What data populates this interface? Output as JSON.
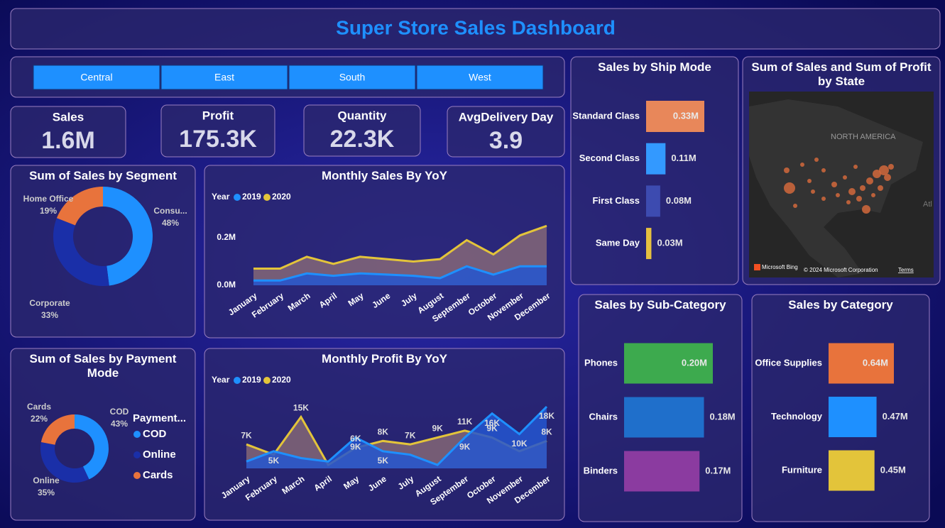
{
  "header": {
    "title": "Super Store Sales Dashboard"
  },
  "slicer": {
    "options": [
      "Central",
      "East",
      "South",
      "West"
    ]
  },
  "kpis": [
    {
      "label": "Sales",
      "value": "1.6M"
    },
    {
      "label": "Profit",
      "value": "175.3K"
    },
    {
      "label": "Quantity",
      "value": "22.3K"
    },
    {
      "label": "AvgDelivery Day",
      "value": "3.9"
    }
  ],
  "chart_data": [
    {
      "type": "donut",
      "title": "Sum of Sales by Segment",
      "categories": [
        "Consu...",
        "Corporate",
        "Home Office"
      ],
      "values": [
        48,
        33,
        19
      ],
      "value_labels": [
        "48%",
        "33%",
        "19%"
      ],
      "colors": [
        "#1E90FF",
        "#1A2FA8",
        "#E8733C"
      ]
    },
    {
      "type": "donut",
      "title": "Sum of Sales by Payment Mode",
      "legend_title": "Payment...",
      "legend": "right",
      "categories": [
        "COD",
        "Online",
        "Cards"
      ],
      "values": [
        43,
        35,
        22
      ],
      "value_labels": [
        "43%",
        "35%",
        "22%"
      ],
      "colors": [
        "#1E90FF",
        "#1A2FA8",
        "#E8733C"
      ]
    },
    {
      "type": "area",
      "title": "Monthly Sales By YoY",
      "legend_title": "Year",
      "categories": [
        "January",
        "February",
        "March",
        "April",
        "May",
        "June",
        "July",
        "August",
        "September",
        "October",
        "November",
        "December"
      ],
      "series": [
        {
          "name": "2019",
          "color": "#1E90FF",
          "values": [
            0.02,
            0.02,
            0.05,
            0.04,
            0.05,
            0.045,
            0.04,
            0.03,
            0.08,
            0.045,
            0.08,
            0.08
          ]
        },
        {
          "name": "2020",
          "color": "#E3C43A",
          "values": [
            0.07,
            0.07,
            0.12,
            0.09,
            0.12,
            0.11,
            0.1,
            0.11,
            0.19,
            0.13,
            0.21,
            0.25
          ]
        }
      ],
      "ylim": [
        0,
        0.3
      ],
      "yticks": [
        {
          "value": 0,
          "label": "0.0M"
        },
        {
          "value": 0.2,
          "label": "0.2M"
        }
      ]
    },
    {
      "type": "area",
      "title": "Monthly Profit By YoY",
      "legend_title": "Year",
      "categories": [
        "January",
        "February",
        "March",
        "April",
        "May",
        "June",
        "July",
        "August",
        "September",
        "October",
        "November",
        "December"
      ],
      "series": [
        {
          "name": "2019",
          "color": "#1E90FF",
          "values": [
            2,
            5,
            3,
            2,
            9,
            5,
            4,
            1,
            9,
            16,
            10,
            18
          ],
          "value_labels": [
            null,
            "5K",
            null,
            null,
            "9K",
            "5K",
            null,
            null,
            "9K",
            "16K",
            "10K",
            "18K"
          ]
        },
        {
          "name": "2020",
          "color": "#E3C43A",
          "values": [
            7,
            4,
            15,
            1,
            6,
            8,
            7,
            9,
            11,
            9,
            5,
            8
          ],
          "value_labels": [
            "7K",
            null,
            "15K",
            null,
            "6K",
            "8K",
            "7K",
            "9K",
            "11K",
            "9K",
            null,
            "8K"
          ]
        }
      ]
    },
    {
      "type": "hbar",
      "title": "Sales by Ship Mode",
      "categories": [
        "Standard Class",
        "Second Class",
        "First Class",
        "Same Day"
      ],
      "values": [
        0.33,
        0.11,
        0.08,
        0.03
      ],
      "value_labels": [
        "0.33M",
        "0.11M",
        "0.08M",
        "0.03M"
      ],
      "colors": [
        "#E8875A",
        "#3399FF",
        "#3D4BB0",
        "#E5C040"
      ]
    },
    {
      "type": "hbar",
      "title": "Sales by Sub-Category",
      "categories": [
        "Phones",
        "Chairs",
        "Binders"
      ],
      "values": [
        0.2,
        0.18,
        0.17
      ],
      "value_labels": [
        "0.20M",
        "0.18M",
        "0.17M"
      ],
      "colors": [
        "#3DAA4E",
        "#1F6FCB",
        "#8B3BA0"
      ]
    },
    {
      "type": "hbar",
      "title": "Sales by Category",
      "categories": [
        "Office Supplies",
        "Technology",
        "Furniture"
      ],
      "values": [
        0.64,
        0.47,
        0.45
      ],
      "value_labels": [
        "0.64M",
        "0.47M",
        "0.45M"
      ],
      "colors": [
        "#E8733C",
        "#1E90FF",
        "#E3C43A"
      ]
    },
    {
      "type": "map",
      "title": "Sum of Sales and Sum of Profit by State",
      "map_labels": [
        "NORTH AMERICA",
        "Atl",
        "Microsoft Bing",
        "© 2024 Microsoft Corporation",
        "Terms"
      ]
    }
  ]
}
